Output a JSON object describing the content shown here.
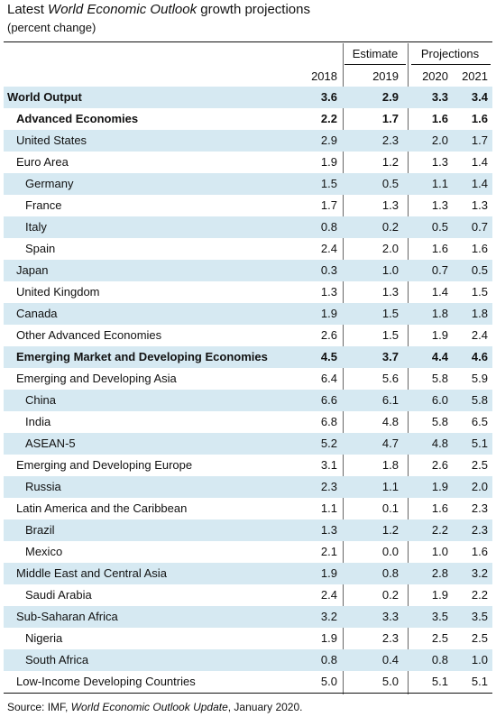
{
  "title": {
    "prefix": "Latest ",
    "italic": "World Economic Outlook",
    "suffix": " growth projections"
  },
  "subtitle": "(percent change)",
  "column_groups": {
    "estimate": "Estimate",
    "projections": "Projections"
  },
  "years": [
    "2018",
    "2019",
    "2020",
    "2021"
  ],
  "rows": [
    {
      "label": "World Output",
      "values": [
        "3.6",
        "2.9",
        "3.3",
        "3.4"
      ],
      "bold": true,
      "indent": 0,
      "shade": true
    },
    {
      "label": "Advanced Economies",
      "values": [
        "2.2",
        "1.7",
        "1.6",
        "1.6"
      ],
      "bold": true,
      "indent": 1,
      "shade": false
    },
    {
      "label": "United States",
      "values": [
        "2.9",
        "2.3",
        "2.0",
        "1.7"
      ],
      "bold": false,
      "indent": 1,
      "shade": true
    },
    {
      "label": "Euro Area",
      "values": [
        "1.9",
        "1.2",
        "1.3",
        "1.4"
      ],
      "bold": false,
      "indent": 1,
      "shade": false
    },
    {
      "label": "Germany",
      "values": [
        "1.5",
        "0.5",
        "1.1",
        "1.4"
      ],
      "bold": false,
      "indent": 2,
      "shade": true
    },
    {
      "label": "France",
      "values": [
        "1.7",
        "1.3",
        "1.3",
        "1.3"
      ],
      "bold": false,
      "indent": 2,
      "shade": false
    },
    {
      "label": "Italy",
      "values": [
        "0.8",
        "0.2",
        "0.5",
        "0.7"
      ],
      "bold": false,
      "indent": 2,
      "shade": true
    },
    {
      "label": "Spain",
      "values": [
        "2.4",
        "2.0",
        "1.6",
        "1.6"
      ],
      "bold": false,
      "indent": 2,
      "shade": false
    },
    {
      "label": "Japan",
      "values": [
        "0.3",
        "1.0",
        "0.7",
        "0.5"
      ],
      "bold": false,
      "indent": 1,
      "shade": true
    },
    {
      "label": "United Kingdom",
      "values": [
        "1.3",
        "1.3",
        "1.4",
        "1.5"
      ],
      "bold": false,
      "indent": 1,
      "shade": false
    },
    {
      "label": "Canada",
      "values": [
        "1.9",
        "1.5",
        "1.8",
        "1.8"
      ],
      "bold": false,
      "indent": 1,
      "shade": true
    },
    {
      "label": "Other Advanced Economies",
      "values": [
        "2.6",
        "1.5",
        "1.9",
        "2.4"
      ],
      "bold": false,
      "indent": 1,
      "shade": false
    },
    {
      "label": "Emerging Market and Developing Economies",
      "values": [
        "4.5",
        "3.7",
        "4.4",
        "4.6"
      ],
      "bold": true,
      "indent": 1,
      "shade": true
    },
    {
      "label": "Emerging and Developing Asia",
      "values": [
        "6.4",
        "5.6",
        "5.8",
        "5.9"
      ],
      "bold": false,
      "indent": 1,
      "shade": false
    },
    {
      "label": "China",
      "values": [
        "6.6",
        "6.1",
        "6.0",
        "5.8"
      ],
      "bold": false,
      "indent": 2,
      "shade": true
    },
    {
      "label": "India",
      "values": [
        "6.8",
        "4.8",
        "5.8",
        "6.5"
      ],
      "bold": false,
      "indent": 2,
      "shade": false
    },
    {
      "label": "ASEAN-5",
      "values": [
        "5.2",
        "4.7",
        "4.8",
        "5.1"
      ],
      "bold": false,
      "indent": 2,
      "shade": true
    },
    {
      "label": "Emerging and Developing Europe",
      "values": [
        "3.1",
        "1.8",
        "2.6",
        "2.5"
      ],
      "bold": false,
      "indent": 1,
      "shade": false
    },
    {
      "label": "Russia",
      "values": [
        "2.3",
        "1.1",
        "1.9",
        "2.0"
      ],
      "bold": false,
      "indent": 2,
      "shade": true
    },
    {
      "label": "Latin America and the Caribbean",
      "values": [
        "1.1",
        "0.1",
        "1.6",
        "2.3"
      ],
      "bold": false,
      "indent": 1,
      "shade": false
    },
    {
      "label": "Brazil",
      "values": [
        "1.3",
        "1.2",
        "2.2",
        "2.3"
      ],
      "bold": false,
      "indent": 2,
      "shade": true
    },
    {
      "label": "Mexico",
      "values": [
        "2.1",
        "0.0",
        "1.0",
        "1.6"
      ],
      "bold": false,
      "indent": 2,
      "shade": false
    },
    {
      "label": "Middle East and Central Asia",
      "values": [
        "1.9",
        "0.8",
        "2.8",
        "3.2"
      ],
      "bold": false,
      "indent": 1,
      "shade": true
    },
    {
      "label": "Saudi Arabia",
      "values": [
        "2.4",
        "0.2",
        "1.9",
        "2.2"
      ],
      "bold": false,
      "indent": 2,
      "shade": false
    },
    {
      "label": "Sub-Saharan Africa",
      "values": [
        "3.2",
        "3.3",
        "3.5",
        "3.5"
      ],
      "bold": false,
      "indent": 1,
      "shade": true
    },
    {
      "label": "Nigeria",
      "values": [
        "1.9",
        "2.3",
        "2.5",
        "2.5"
      ],
      "bold": false,
      "indent": 2,
      "shade": false
    },
    {
      "label": "South Africa",
      "values": [
        "0.8",
        "0.4",
        "0.8",
        "1.0"
      ],
      "bold": false,
      "indent": 2,
      "shade": true
    },
    {
      "label": "Low-Income Developing Countries",
      "values": [
        "5.0",
        "5.0",
        "5.1",
        "5.1"
      ],
      "bold": false,
      "indent": 1,
      "shade": false
    }
  ],
  "source": {
    "prefix": "Source: IMF, ",
    "italic": "World Economic Outlook Update",
    "suffix": ", January 2020."
  }
}
